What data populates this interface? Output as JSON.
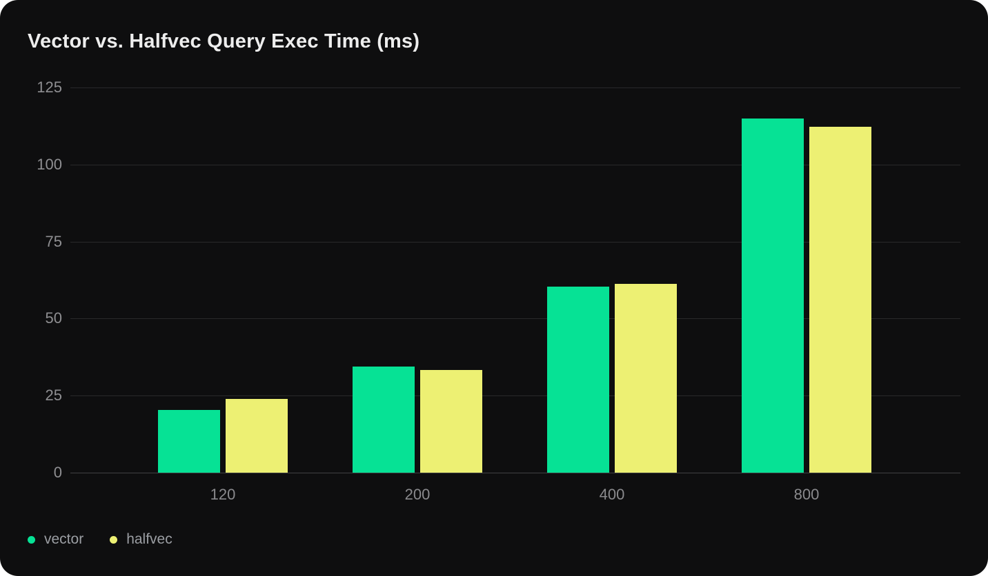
{
  "card": {
    "title": "Vector vs. Halfvec Query Exec Time (ms)",
    "background": "#0e0e0f"
  },
  "chart_data": {
    "type": "bar",
    "title": "Vector vs. Halfvec Query Exec Time (ms)",
    "categories": [
      "120",
      "200",
      "400",
      "800"
    ],
    "series": [
      {
        "name": "vector",
        "color": "#06e295",
        "values": [
          20.3,
          34.4,
          60.4,
          115.0
        ]
      },
      {
        "name": "halfvec",
        "color": "#edf073",
        "values": [
          23.9,
          33.4,
          61.3,
          112.3
        ]
      }
    ],
    "xlabel": "",
    "ylabel": "",
    "ylim": [
      0,
      125
    ],
    "yticks": [
      0,
      25,
      50,
      75,
      100,
      125
    ],
    "grid": true,
    "legend_position": "bottom-left"
  },
  "colors": {
    "gridline": "#29292b",
    "axis_line": "#414144",
    "tick_label": "#8f8f92",
    "legend_label": "#9b9ea3",
    "title_text": "#ededed"
  }
}
